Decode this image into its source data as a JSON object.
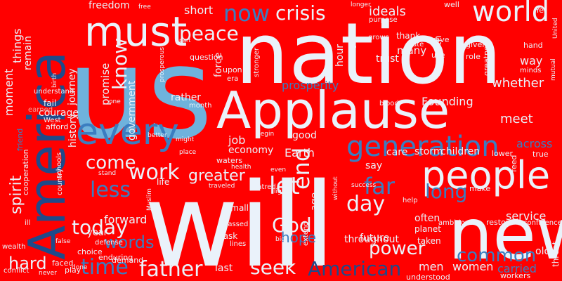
{
  "colors": {
    "background": "#ff0000",
    "white": "#eaf2fa",
    "light_blue": "#6fb2dc",
    "mid_blue": "#3b7dc0",
    "dark_blue": "#1f4a8a",
    "faint": "#f3a09a"
  },
  "words": [
    {
      "text": "us",
      "color": "light_blue"
    },
    {
      "text": "nation",
      "color": "white"
    },
    {
      "text": "Applause",
      "color": "white"
    },
    {
      "text": "will",
      "color": "white"
    },
    {
      "text": "America",
      "color": "dark_blue"
    },
    {
      "text": "new",
      "color": "white"
    },
    {
      "text": "must",
      "color": "white"
    },
    {
      "text": "people",
      "color": "white"
    },
    {
      "text": "every",
      "color": "mid_blue"
    },
    {
      "text": "world",
      "color": "white"
    },
    {
      "text": "generation",
      "color": "mid_blue"
    },
    {
      "text": "crisis",
      "color": "white"
    },
    {
      "text": "peace",
      "color": "white"
    },
    {
      "text": "now",
      "color": "mid_blue"
    },
    {
      "text": "know",
      "color": "white"
    },
    {
      "text": "work",
      "color": "white"
    },
    {
      "text": "less",
      "color": "mid_blue"
    },
    {
      "text": "come",
      "color": "white"
    },
    {
      "text": "let",
      "color": "white"
    },
    {
      "text": "end",
      "color": "white"
    },
    {
      "text": "far",
      "color": "mid_blue"
    },
    {
      "text": "day",
      "color": "white"
    },
    {
      "text": "long",
      "color": "mid_blue"
    },
    {
      "text": "time",
      "color": "mid_blue"
    },
    {
      "text": "today",
      "color": "white"
    },
    {
      "text": "father",
      "color": "white"
    },
    {
      "text": "seek",
      "color": "white"
    },
    {
      "text": "American",
      "color": "dark_blue"
    },
    {
      "text": "God",
      "color": "white"
    },
    {
      "text": "power",
      "color": "white"
    },
    {
      "text": "common",
      "color": "mid_blue"
    },
    {
      "text": "words",
      "color": "mid_blue"
    },
    {
      "text": "hard",
      "color": "white"
    },
    {
      "text": "spirit",
      "color": "white"
    },
    {
      "text": "greater",
      "color": "white"
    },
    {
      "text": "prosperity",
      "color": "mid_blue"
    },
    {
      "text": "whether",
      "color": "white"
    },
    {
      "text": "meet",
      "color": "white"
    },
    {
      "text": "ideals",
      "color": "white"
    },
    {
      "text": "Founding",
      "color": "white"
    },
    {
      "text": "hope",
      "color": "mid_blue"
    },
    {
      "text": "history",
      "color": "white"
    },
    {
      "text": "promise",
      "color": "white"
    },
    {
      "text": "government",
      "color": "white"
    },
    {
      "text": "journey",
      "color": "white"
    },
    {
      "text": "remain",
      "color": "white"
    },
    {
      "text": "things",
      "color": "white"
    },
    {
      "text": "moment",
      "color": "white"
    },
    {
      "text": "freedom",
      "color": "white"
    },
    {
      "text": "short",
      "color": "white"
    },
    {
      "text": "job",
      "color": "white"
    },
    {
      "text": "economy",
      "color": "white"
    },
    {
      "text": "Earth",
      "color": "white"
    },
    {
      "text": "storm",
      "color": "white"
    },
    {
      "text": "children",
      "color": "white"
    },
    {
      "text": "care",
      "color": "white"
    },
    {
      "text": "good",
      "color": "white"
    },
    {
      "text": "say",
      "color": "white"
    },
    {
      "text": "service",
      "color": "white"
    },
    {
      "text": "forward",
      "color": "white"
    },
    {
      "text": "year",
      "color": "white"
    },
    {
      "text": "women",
      "color": "white"
    },
    {
      "text": "men",
      "color": "white"
    },
    {
      "text": "carried",
      "color": "mid_blue"
    },
    {
      "text": "future",
      "color": "white"
    },
    {
      "text": "many",
      "color": "white"
    },
    {
      "text": "way",
      "color": "white"
    },
    {
      "text": "often",
      "color": "white"
    },
    {
      "text": "across",
      "color": "mid_blue"
    },
    {
      "text": "force",
      "color": "white"
    },
    {
      "text": "rather",
      "color": "white"
    },
    {
      "text": "question",
      "color": "white"
    },
    {
      "text": "upon",
      "color": "white"
    },
    {
      "text": "hour",
      "color": "white"
    },
    {
      "text": "trust",
      "color": "white"
    },
    {
      "text": "thank",
      "color": "white"
    },
    {
      "text": "oath",
      "color": "white"
    },
    {
      "text": "courage",
      "color": "white"
    },
    {
      "text": "small",
      "color": "white"
    },
    {
      "text": "throughout",
      "color": "white"
    },
    {
      "text": "age",
      "color": "white"
    },
    {
      "text": "planet",
      "color": "white"
    },
    {
      "text": "taken",
      "color": "white"
    },
    {
      "text": "old",
      "color": "white"
    },
    {
      "text": "threat",
      "color": "white"
    },
    {
      "text": "cooperation",
      "color": "white"
    },
    {
      "text": "friend",
      "color": "mid_blue"
    },
    {
      "text": "understand",
      "color": "white"
    },
    {
      "text": "afford",
      "color": "white"
    },
    {
      "text": "West",
      "color": "white"
    },
    {
      "text": "fail",
      "color": "white"
    },
    {
      "text": "earned",
      "color": "faint"
    },
    {
      "text": "enduring",
      "color": "white"
    },
    {
      "text": "choice",
      "color": "white"
    },
    {
      "text": "demand",
      "color": "white"
    },
    {
      "text": "defense",
      "color": "white"
    },
    {
      "text": "done",
      "color": "white"
    },
    {
      "text": "play",
      "color": "white"
    },
    {
      "text": "faced",
      "color": "white"
    },
    {
      "text": "last",
      "color": "white"
    },
    {
      "text": "task",
      "color": "white"
    },
    {
      "text": "passed",
      "color": "white"
    },
    {
      "text": "lines",
      "color": "white"
    },
    {
      "text": "big",
      "color": "white"
    },
    {
      "text": "extend",
      "color": "white"
    },
    {
      "text": "understood",
      "color": "white"
    },
    {
      "text": "workers",
      "color": "white"
    },
    {
      "text": "ambitions",
      "color": "white"
    },
    {
      "text": "restore",
      "color": "white"
    },
    {
      "text": "help",
      "color": "white"
    },
    {
      "text": "make",
      "color": "white"
    },
    {
      "text": "confidence",
      "color": "white"
    },
    {
      "text": "feed",
      "color": "white"
    },
    {
      "text": "true",
      "color": "white"
    },
    {
      "text": "lower",
      "color": "white"
    },
    {
      "text": "purpose",
      "color": "white"
    },
    {
      "text": "state",
      "color": "white"
    },
    {
      "text": "grows",
      "color": "white"
    },
    {
      "text": "brave",
      "color": "white"
    },
    {
      "text": "well",
      "color": "white"
    },
    {
      "text": "longer",
      "color": "white"
    },
    {
      "text": "Yet",
      "color": "white"
    },
    {
      "text": "given",
      "color": "white"
    },
    {
      "text": "role",
      "color": "white"
    },
    {
      "text": "use",
      "color": "white"
    },
    {
      "text": "hand",
      "color": "white"
    },
    {
      "text": "minds",
      "color": "white"
    },
    {
      "text": "greatness",
      "color": "white"
    },
    {
      "text": "stronger",
      "color": "white"
    },
    {
      "text": "willing",
      "color": "white"
    },
    {
      "text": "era",
      "color": "white"
    },
    {
      "text": "blood",
      "color": "white"
    },
    {
      "text": "month",
      "color": "white"
    },
    {
      "text": "might",
      "color": "white"
    },
    {
      "text": "place",
      "color": "white"
    },
    {
      "text": "waters",
      "color": "white"
    },
    {
      "text": "health",
      "color": "white"
    },
    {
      "text": "even",
      "color": "white"
    },
    {
      "text": "hatred",
      "color": "white"
    },
    {
      "text": "light",
      "color": "white"
    },
    {
      "text": "life",
      "color": "white"
    },
    {
      "text": "stand",
      "color": "white"
    },
    {
      "text": "Muslim",
      "color": "white"
    },
    {
      "text": "begin",
      "color": "white"
    },
    {
      "text": "traveled",
      "color": "white"
    },
    {
      "text": "without",
      "color": "white"
    },
    {
      "text": "one",
      "color": "white"
    },
    {
      "text": "free",
      "color": "white"
    },
    {
      "text": "part",
      "color": "white"
    },
    {
      "text": "birth",
      "color": "white"
    },
    {
      "text": "ill",
      "color": "white"
    },
    {
      "text": "wealth",
      "color": "white"
    },
    {
      "text": "conflict",
      "color": "white"
    },
    {
      "text": "never",
      "color": "white"
    },
    {
      "text": "false",
      "color": "white"
    },
    {
      "text": "country",
      "color": "white"
    },
    {
      "text": "schools",
      "color": "white"
    },
    {
      "text": "success",
      "color": "white"
    },
    {
      "text": "mutual",
      "color": "white"
    },
    {
      "text": "United",
      "color": "white"
    },
    {
      "text": "better",
      "color": "white"
    },
    {
      "text": "prosperous",
      "color": "white"
    }
  ]
}
